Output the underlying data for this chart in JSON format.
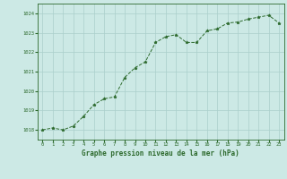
{
  "x": [
    0,
    1,
    2,
    3,
    4,
    5,
    6,
    7,
    8,
    9,
    10,
    11,
    12,
    13,
    14,
    15,
    16,
    17,
    18,
    19,
    20,
    21,
    22,
    23
  ],
  "y": [
    1018.0,
    1018.1,
    1018.0,
    1018.2,
    1018.7,
    1019.3,
    1019.6,
    1019.7,
    1020.7,
    1021.2,
    1021.5,
    1022.5,
    1022.8,
    1022.9,
    1022.5,
    1022.5,
    1023.1,
    1023.2,
    1023.5,
    1023.55,
    1023.7,
    1023.8,
    1023.9,
    1023.5
  ],
  "line_color": "#2d6a2d",
  "marker": "*",
  "marker_size": 2.5,
  "bg_color": "#cce9e5",
  "grid_color": "#aacfcb",
  "text_color": "#2d6a2d",
  "xlabel": "Graphe pression niveau de la mer (hPa)",
  "ylim": [
    1017.5,
    1024.5
  ],
  "xlim": [
    -0.5,
    23.5
  ],
  "yticks": [
    1018,
    1019,
    1020,
    1021,
    1022,
    1023,
    1024
  ],
  "xticks": [
    0,
    1,
    2,
    3,
    4,
    5,
    6,
    7,
    8,
    9,
    10,
    11,
    12,
    13,
    14,
    15,
    16,
    17,
    18,
    19,
    20,
    21,
    22,
    23
  ],
  "spine_color": "#2d6a2d",
  "tick_fontsize": 4.0,
  "xlabel_fontsize": 5.5
}
